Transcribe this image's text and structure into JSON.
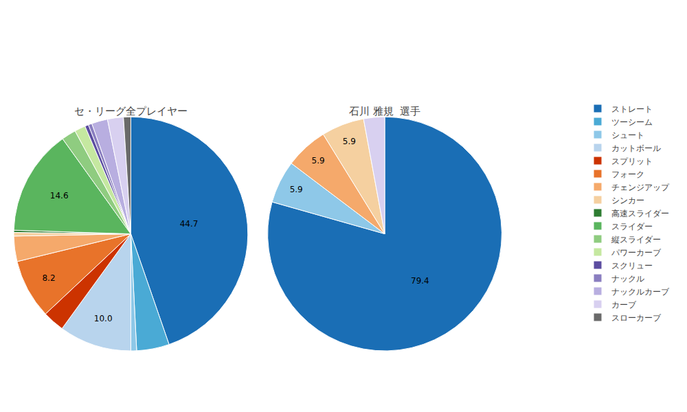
{
  "chart_data": [
    {
      "type": "pie",
      "title": "セ・リーグ全プレイヤー",
      "categories": [
        "ストレート",
        "ツーシーム",
        "シュート",
        "カットボール",
        "スプリット",
        "フォーク",
        "チェンジアップ",
        "シンカー",
        "高速スライダー",
        "スライダー",
        "縦スライダー",
        "パワーカーブ",
        "スクリュー",
        "ナックル",
        "ナックルカーブ",
        "カーブ",
        "スローカーブ"
      ],
      "values": [
        44.7,
        4.5,
        0.8,
        10.0,
        3.0,
        8.2,
        3.5,
        0.5,
        0.3,
        14.6,
        2.0,
        1.5,
        0.5,
        0.5,
        2.2,
        2.2,
        1.0
      ],
      "colors": [
        "#1a6eb5",
        "#4aaad5",
        "#8ec8e8",
        "#b8d4ed",
        "#cc3300",
        "#e8732a",
        "#f5a96b",
        "#f5d0a0",
        "#2e7d32",
        "#5ab55e",
        "#8fcc80",
        "#c5e8a0",
        "#5c4da0",
        "#8a7ec0",
        "#b8aee0",
        "#d8d0f0",
        "#6a6a6a"
      ],
      "value_labels": [
        "44.7",
        null,
        null,
        "10.0",
        null,
        "8.2",
        null,
        null,
        null,
        "14.6",
        null,
        null,
        null,
        null,
        null,
        null,
        null
      ],
      "legend": "right"
    },
    {
      "type": "pie",
      "title": "石川 雅規  選手",
      "categories": [
        "ストレート",
        "シュート",
        "チェンジアップ",
        "シンカー",
        "カーブ"
      ],
      "values": [
        79.4,
        5.9,
        5.9,
        5.9,
        2.9
      ],
      "colors": [
        "#1a6eb5",
        "#8ec8e8",
        "#f5a96b",
        "#f5d0a0",
        "#d8d0f0"
      ],
      "value_labels": [
        "79.4",
        "5.9",
        "5.9",
        "5.9",
        null
      ]
    }
  ]
}
